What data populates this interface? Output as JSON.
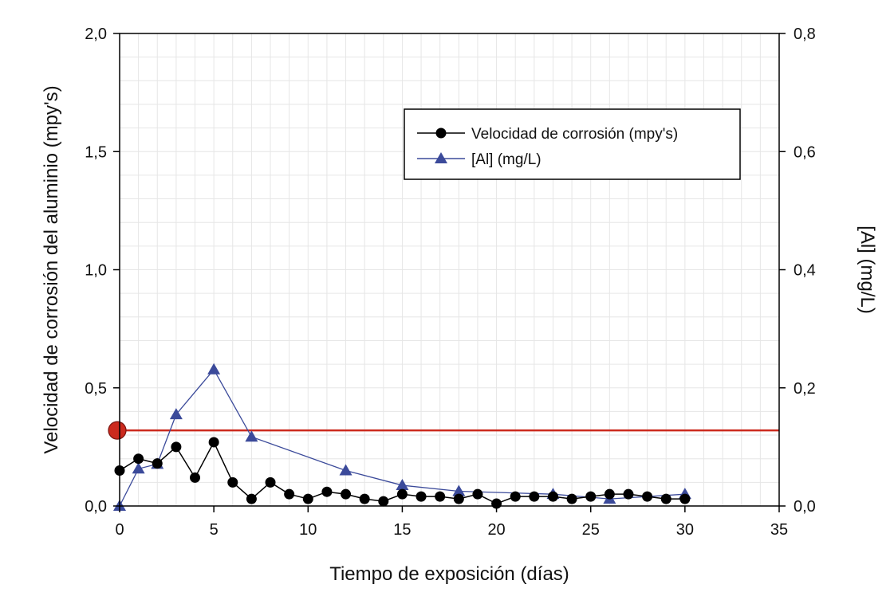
{
  "chart_data": {
    "type": "line",
    "xlabel": "Tiempo de exposición (días)",
    "ylabel": "Velocidad de corrosión del aluminio (mpy's)",
    "y2label": "[Al] (mg/L)",
    "xlim": [
      0,
      35
    ],
    "ylim": [
      0,
      2.0
    ],
    "y2lim": [
      0,
      0.8
    ],
    "xticks": [
      "0",
      "5",
      "10",
      "15",
      "20",
      "25",
      "30",
      "35"
    ],
    "yticks": [
      "0,0",
      "0,5",
      "1,0",
      "1,5",
      "2,0"
    ],
    "y2ticks": [
      "0,0",
      "0,2",
      "0,4",
      "0,6",
      "0,8"
    ],
    "grid": true,
    "legend_position": "top-right",
    "series": [
      {
        "name": "Velocidad de corrosión (mpy's)",
        "axis": "left",
        "marker": "circle",
        "color": "#000000",
        "x": [
          0,
          1,
          2,
          3,
          4,
          5,
          6,
          7,
          8,
          9,
          10,
          11,
          12,
          13,
          14,
          15,
          16,
          17,
          18,
          19,
          20,
          21,
          22,
          23,
          24,
          25,
          26,
          27,
          28,
          29,
          30
        ],
        "y": [
          0.15,
          0.2,
          0.18,
          0.25,
          0.12,
          0.27,
          0.1,
          0.03,
          0.1,
          0.05,
          0.03,
          0.06,
          0.05,
          0.03,
          0.02,
          0.05,
          0.04,
          0.04,
          0.03,
          0.05,
          0.01,
          0.04,
          0.04,
          0.04,
          0.03,
          0.04,
          0.05,
          0.05,
          0.04,
          0.03,
          0.03
        ]
      },
      {
        "name": "[Al] (mg/L)",
        "axis": "right",
        "marker": "triangle",
        "color": "#3b4a9a",
        "x": [
          0,
          1,
          2,
          3,
          5,
          7,
          12,
          15,
          18,
          23,
          26,
          30
        ],
        "y": [
          0.0,
          0.063,
          0.071,
          0.155,
          0.231,
          0.117,
          0.06,
          0.035,
          0.025,
          0.02,
          0.012,
          0.02
        ]
      }
    ],
    "reference_line": {
      "value": 0.32,
      "axis": "left",
      "color": "#cc2a1e",
      "marker_color": "#cc2a1e"
    },
    "colors": {
      "frame": "#000000",
      "grid": "#e6e6e6",
      "corrosion": "#000000",
      "aluminum": "#3b4a9a",
      "reference": "#cc2a1e"
    }
  }
}
